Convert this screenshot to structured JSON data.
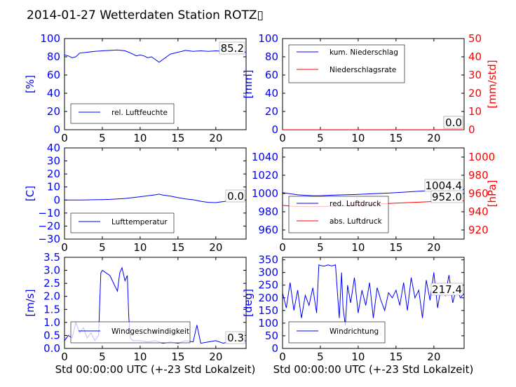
{
  "figure": {
    "title": "2014-01-27 Wetterdaten Station ROTZ▯"
  },
  "colors": {
    "left_axis": "#0000ff",
    "right_axis": "#ff0000",
    "series_blue": "#0000ff",
    "series_red": "#ff0000"
  },
  "chart_data": [
    {
      "type": "line",
      "panel": "humidity",
      "ylabel": "[%]",
      "xlim": [
        0,
        24
      ],
      "ylim": [
        0,
        100
      ],
      "xticks": [
        "0",
        "5",
        "10",
        "15",
        "20"
      ],
      "yticks": [
        "0",
        "20",
        "40",
        "60",
        "80",
        "100"
      ],
      "value_label": "85.2",
      "legend_position": "lower-left",
      "series": [
        {
          "name": "rel. Luftfeuchte",
          "color": "#0000ff",
          "x": [
            0,
            0.5,
            1,
            1.5,
            2,
            3,
            4,
            5,
            6,
            7,
            8,
            8.5,
            9,
            9.5,
            10,
            10.5,
            11,
            11.5,
            12,
            12.5,
            13,
            13.5,
            14,
            15,
            16,
            17,
            18,
            19,
            20,
            21,
            22,
            23,
            24
          ],
          "y": [
            82,
            81,
            79,
            80,
            84,
            85,
            86,
            86.5,
            87,
            87.5,
            86.5,
            85,
            83,
            81,
            82,
            81,
            79,
            80,
            77,
            74,
            77,
            80,
            83,
            85,
            87,
            86,
            86.5,
            86,
            86.5,
            86,
            85.5,
            85.2,
            85.2
          ]
        }
      ]
    },
    {
      "type": "line",
      "panel": "precipitation",
      "ylabel": "[mm]",
      "ylabel_right": "[mm/std]",
      "xlim": [
        0,
        24
      ],
      "ylim": [
        0,
        100
      ],
      "ylim_right": [
        0,
        50
      ],
      "xticks": [
        "0",
        "5",
        "10",
        "15",
        "20"
      ],
      "yticks": [
        "0",
        "20",
        "40",
        "60",
        "80",
        "100"
      ],
      "yticks_right": [
        "0",
        "10",
        "20",
        "30",
        "40",
        "50"
      ],
      "value_labels": [
        "0.0",
        "0.0"
      ],
      "legend_position": "upper-left",
      "series": [
        {
          "name": "kum. Niederschlag",
          "color": "#0000ff",
          "x": [
            0,
            24
          ],
          "y": [
            0,
            0
          ]
        },
        {
          "name": "Niederschlagsrate",
          "color": "#ff0000",
          "axis": "right",
          "x": [
            0,
            24
          ],
          "y": [
            0,
            0
          ]
        }
      ]
    },
    {
      "type": "line",
      "panel": "temperature",
      "ylabel": "[C]",
      "xlim": [
        0,
        24
      ],
      "ylim": [
        -30,
        40
      ],
      "xticks": [
        "0",
        "5",
        "10",
        "15",
        "20"
      ],
      "yticks": [
        "−30",
        "−20",
        "−10",
        "0",
        "10",
        "20",
        "30",
        "40"
      ],
      "value_label": "0.0",
      "legend_position": "lower-left",
      "series": [
        {
          "name": "Lufttemperatur",
          "color": "#0000ff",
          "x": [
            0,
            1,
            2,
            3,
            4,
            5,
            6,
            7,
            8,
            9,
            10,
            11,
            12,
            12.5,
            13,
            14,
            15,
            16,
            17,
            18,
            19,
            20,
            21,
            22,
            23,
            24
          ],
          "y": [
            0,
            0,
            0,
            0.1,
            0.2,
            0.3,
            0.5,
            0.8,
            1.2,
            1.8,
            2.5,
            3.2,
            4,
            4.5,
            3.8,
            3,
            1.8,
            0.8,
            0.2,
            -1,
            -1.8,
            -2,
            -1.2,
            -0.5,
            0,
            0
          ]
        }
      ]
    },
    {
      "type": "line",
      "panel": "pressure",
      "ylim": [
        950,
        1050
      ],
      "ylim_right": [
        910,
        1010
      ],
      "ylabel_right": "[hPa]",
      "xlim": [
        0,
        24
      ],
      "xticks": [
        "0",
        "5",
        "10",
        "15",
        "20"
      ],
      "yticks": [
        "960",
        "980",
        "1000",
        "1020",
        "1040"
      ],
      "yticks_right": [
        "920",
        "940",
        "960",
        "980",
        "1000"
      ],
      "value_labels": [
        "1004.4",
        "952.0"
      ],
      "legend_position": "lower-left",
      "series": [
        {
          "name": "red. Luftdruck",
          "color": "#0000ff",
          "x": [
            0,
            2,
            4,
            5,
            6,
            8,
            10,
            12,
            14,
            16,
            18,
            20,
            22,
            24
          ],
          "y": [
            1001,
            998.5,
            997.5,
            997.5,
            998,
            998.5,
            999,
            999.8,
            1000.5,
            1001.5,
            1002.5,
            1003.2,
            1004,
            1004.4
          ]
        },
        {
          "name": "abs. Luftdruck",
          "color": "#ff0000",
          "axis": "right",
          "x": [
            0,
            1,
            2,
            4,
            6,
            8,
            10,
            12,
            14,
            16,
            18,
            20,
            22,
            24
          ],
          "y": [
            947,
            946.2,
            945.8,
            945.6,
            946,
            946.5,
            947.2,
            948.2,
            949,
            949.8,
            950.5,
            951.2,
            951.7,
            952
          ]
        }
      ]
    },
    {
      "type": "line",
      "panel": "wind-speed",
      "ylabel": "[m/s]",
      "xlim": [
        0,
        24
      ],
      "ylim": [
        0,
        3.5
      ],
      "xlabel": "Std 00:00:00 UTC (+-23 Std Lokalzeit)",
      "xticks": [
        "0",
        "5",
        "10",
        "15",
        "20"
      ],
      "yticks": [
        "0.0",
        "0.5",
        "1.0",
        "1.5",
        "2.0",
        "2.5",
        "3.0",
        "3.5"
      ],
      "value_label": "0.3",
      "legend_position": "lower-left",
      "series": [
        {
          "name": "Windgeschwindigkeit",
          "color": "#0000ff",
          "x": [
            0,
            0.5,
            1,
            1.5,
            2,
            2.5,
            3,
            3.5,
            4,
            4.5,
            4.8,
            5,
            5.5,
            6,
            6.5,
            7,
            7.3,
            7.6,
            8,
            8.3,
            8.5,
            8.7,
            9,
            10,
            11,
            12,
            13,
            14,
            15,
            16,
            17,
            17.5,
            18,
            19,
            20,
            21,
            22,
            23,
            24
          ],
          "y": [
            0.3,
            0.5,
            0.4,
            1.0,
            0.6,
            0.8,
            0.4,
            0.6,
            0.3,
            0.5,
            2.9,
            3.0,
            2.9,
            2.8,
            2.5,
            2.2,
            2.9,
            3.1,
            2.6,
            2.8,
            1.2,
            0.4,
            0.3,
            0.3,
            0.25,
            0.3,
            0.2,
            0.25,
            0.2,
            0.3,
            0.25,
            0.9,
            0.2,
            0.25,
            0.3,
            0.2,
            0.3,
            0.25,
            0.3
          ]
        }
      ]
    },
    {
      "type": "line",
      "panel": "wind-direction",
      "ylabel": "[deg]",
      "xlim": [
        0,
        24
      ],
      "ylim": [
        0,
        360
      ],
      "xlabel": "Std 00:00:00 UTC (+-23 Std Lokalzeit)",
      "xticks": [
        "0",
        "5",
        "10",
        "15",
        "20"
      ],
      "yticks": [
        "0",
        "50",
        "100",
        "150",
        "200",
        "250",
        "300",
        "350"
      ],
      "value_label": "217.4",
      "legend_position": "lower-left",
      "series": [
        {
          "name": "Windrichtung",
          "color": "#0000ff",
          "x": [
            0,
            0.5,
            1,
            1.5,
            2,
            2.5,
            3,
            3.5,
            4,
            4.5,
            4.8,
            5,
            5.5,
            6,
            6.5,
            7,
            7.5,
            7.8,
            8,
            8.3,
            8.6,
            9,
            9.5,
            10,
            10.5,
            11,
            11.5,
            12,
            12.5,
            13,
            13.5,
            14,
            14.5,
            15,
            15.5,
            16,
            16.5,
            17,
            17.5,
            18,
            18.5,
            19,
            19.5,
            20,
            20.5,
            21,
            21.5,
            22,
            22.5,
            23,
            23.5,
            24
          ],
          "y": [
            220,
            160,
            260,
            150,
            230,
            120,
            210,
            170,
            240,
            140,
            330,
            328,
            325,
            330,
            326,
            330,
            120,
            300,
            160,
            90,
            250,
            180,
            280,
            140,
            230,
            170,
            260,
            120,
            240,
            190,
            150,
            220,
            200,
            230,
            170,
            260,
            150,
            280,
            200,
            230,
            120,
            270,
            190,
            300,
            160,
            250,
            210,
            290,
            180,
            240,
            200,
            217
          ]
        }
      ]
    }
  ]
}
